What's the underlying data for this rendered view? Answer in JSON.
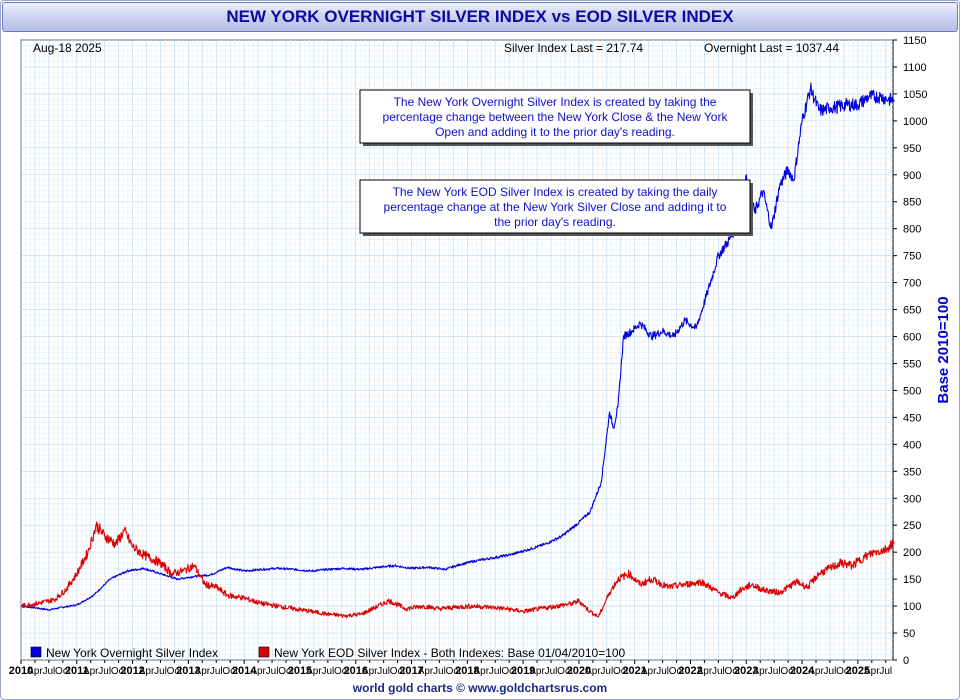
{
  "page_title": "NEW YORK OVERNIGHT SILVER INDEX vs EOD SILVER INDEX",
  "date_label": "Aug-18  2025",
  "silver_last_label": "Silver Index Last = 217.74",
  "overnight_last_label": "Overnight Last = 1037.44",
  "note_overnight": [
    "The New York Overnight Silver Index is created by taking the",
    "percentage change between the New York Close & the New York",
    "Open and adding it to the prior day's reading."
  ],
  "note_eod": [
    "The New York EOD Silver Index is created by taking the daily",
    "percentage change at the New York Silver Close and adding it to",
    "the prior day's reading."
  ],
  "footer": "world gold charts © www.goldchartsrus.com",
  "colors": {
    "overnight": "#0000dd",
    "eod": "#dd0000",
    "title": "#0a0aa0",
    "grid": "#cfe3f3"
  },
  "chart_data": {
    "type": "line",
    "title": "NEW YORK OVERNIGHT SILVER INDEX vs EOD SILVER INDEX",
    "ylabel": "Base 2010=100",
    "ylim": [
      0,
      1150
    ],
    "y_axis_side": "right",
    "y_ticks": [
      0,
      50,
      100,
      150,
      200,
      250,
      300,
      350,
      400,
      450,
      500,
      550,
      600,
      650,
      700,
      750,
      800,
      850,
      900,
      950,
      1000,
      1050,
      1100,
      1150
    ],
    "x_range": [
      2010.0,
      2025.63
    ],
    "year_labels": [
      "2010",
      "2011",
      "2012",
      "2013",
      "2014",
      "2015",
      "2016",
      "2017",
      "2018",
      "2019",
      "2020",
      "2021",
      "2022",
      "2023",
      "2024",
      "2025"
    ],
    "month_labels": [
      "Apr",
      "Jul",
      "Oct"
    ],
    "grid": true,
    "legend_position": "bottom",
    "legend": [
      {
        "label": "New York Overnight Silver Index",
        "color": "#0000dd"
      },
      {
        "label": "New York EOD Silver Index - Both Indexes: Base 01/04/2010=100",
        "color": "#dd0000"
      }
    ],
    "series": [
      {
        "name": "New York Overnight Silver Index",
        "color": "#0000dd",
        "x": [
          2010.0,
          2010.25,
          2010.5,
          2010.75,
          2011.0,
          2011.3,
          2011.6,
          2011.9,
          2012.2,
          2012.5,
          2012.8,
          2013.1,
          2013.4,
          2013.7,
          2014.0,
          2014.3,
          2014.6,
          2014.9,
          2015.2,
          2015.5,
          2015.8,
          2016.1,
          2016.4,
          2016.7,
          2017.0,
          2017.3,
          2017.6,
          2017.9,
          2018.2,
          2018.5,
          2018.8,
          2019.1,
          2019.4,
          2019.7,
          2020.0,
          2020.2,
          2020.4,
          2020.55,
          2020.62,
          2020.7,
          2020.8,
          2020.95,
          2021.1,
          2021.3,
          2021.5,
          2021.7,
          2021.9,
          2022.1,
          2022.3,
          2022.5,
          2022.7,
          2022.9,
          2023.0,
          2023.15,
          2023.3,
          2023.45,
          2023.6,
          2023.75,
          2023.85,
          2024.0,
          2024.15,
          2024.3,
          2024.4,
          2024.5,
          2024.6,
          2024.8,
          2025.0,
          2025.2,
          2025.4,
          2025.55,
          2025.63
        ],
        "values": [
          100,
          97,
          93,
          98,
          102,
          120,
          150,
          165,
          170,
          160,
          150,
          155,
          158,
          172,
          165,
          168,
          170,
          168,
          165,
          168,
          170,
          168,
          172,
          175,
          170,
          172,
          168,
          178,
          185,
          190,
          196,
          205,
          215,
          230,
          255,
          275,
          330,
          460,
          430,
          470,
          600,
          610,
          625,
          600,
          610,
          600,
          630,
          615,
          680,
          750,
          780,
          820,
          900,
          830,
          870,
          800,
          880,
          910,
          890,
          1000,
          1060,
          1020,
          1020,
          1025,
          1025,
          1030,
          1030,
          1045,
          1045,
          1040,
          1037.44
        ]
      },
      {
        "name": "New York EOD Silver Index - Both Indexes: Base 01/04/2010=100",
        "color": "#dd0000",
        "x": [
          2010.0,
          2010.3,
          2010.6,
          2010.8,
          2011.0,
          2011.2,
          2011.35,
          2011.5,
          2011.7,
          2011.85,
          2012.0,
          2012.2,
          2012.5,
          2012.7,
          2012.9,
          2013.1,
          2013.3,
          2013.5,
          2013.7,
          2014.0,
          2014.3,
          2014.6,
          2014.9,
          2015.2,
          2015.5,
          2015.8,
          2016.1,
          2016.3,
          2016.6,
          2016.9,
          2017.2,
          2017.5,
          2017.8,
          2018.1,
          2018.4,
          2018.7,
          2019.0,
          2019.3,
          2019.6,
          2019.9,
          2020.0,
          2020.2,
          2020.35,
          2020.55,
          2020.7,
          2020.9,
          2021.1,
          2021.3,
          2021.6,
          2021.9,
          2022.2,
          2022.5,
          2022.75,
          2022.9,
          2023.1,
          2023.3,
          2023.6,
          2023.9,
          2024.1,
          2024.3,
          2024.5,
          2024.7,
          2024.9,
          2025.1,
          2025.3,
          2025.5,
          2025.63
        ],
        "values": [
          100,
          105,
          112,
          130,
          160,
          200,
          250,
          230,
          215,
          240,
          210,
          195,
          180,
          160,
          165,
          175,
          140,
          135,
          120,
          115,
          105,
          100,
          95,
          90,
          85,
          82,
          85,
          95,
          110,
          95,
          100,
          95,
          98,
          100,
          98,
          95,
          90,
          95,
          100,
          105,
          110,
          90,
          80,
          125,
          150,
          160,
          140,
          150,
          135,
          140,
          145,
          125,
          115,
          130,
          140,
          130,
          125,
          145,
          135,
          160,
          170,
          180,
          175,
          190,
          200,
          205,
          217.74
        ]
      }
    ]
  }
}
